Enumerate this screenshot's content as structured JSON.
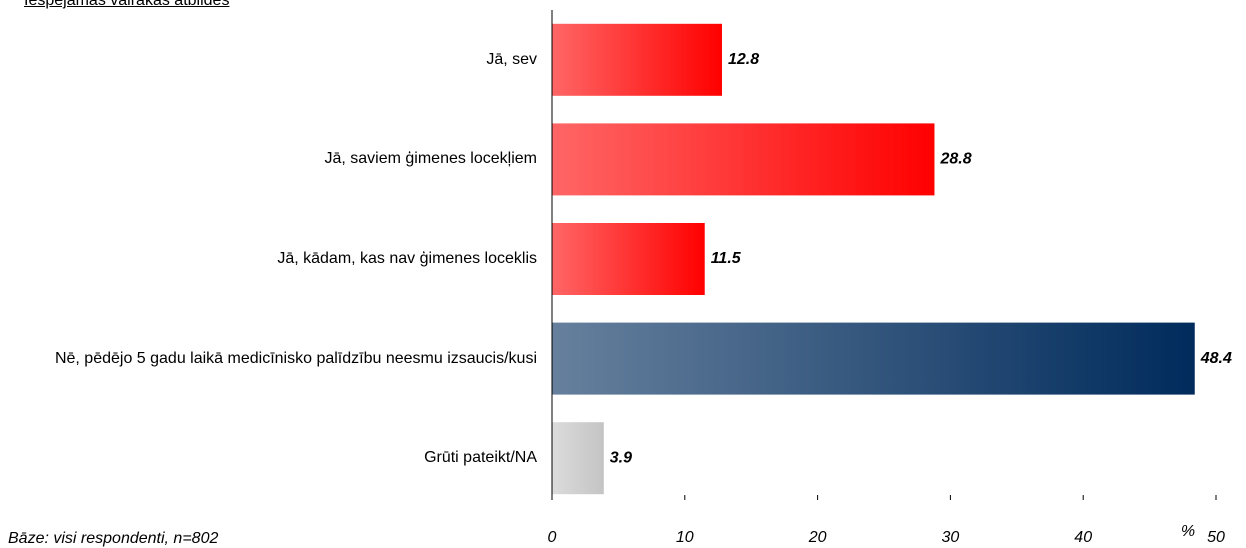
{
  "chart_data": {
    "type": "barh",
    "subtitle": "Iespējamas vairākas atbildes",
    "note": "Bāze: visi respondenti, n=802",
    "x_label": "%",
    "categories": [
      "Jā, sev",
      "Jā, saviem ģimenes locekļiem",
      "Jā, kādam, kas nav ģimenes loceklis",
      "Nē, pēdējo 5 gadu laikā medicīnisko palīdzību neesmu izsaucis/kusi",
      "Grūti pateikt/NA"
    ],
    "values": [
      12.8,
      28.8,
      11.5,
      48.4,
      3.9
    ],
    "colors": [
      "#ff0000",
      "#ff0000",
      "#ff0000",
      "#002b5c",
      "#c4c4c4"
    ],
    "xlim": [
      0,
      50
    ],
    "xticks": [
      0,
      10,
      20,
      30,
      40,
      50
    ],
    "grid": false
  }
}
